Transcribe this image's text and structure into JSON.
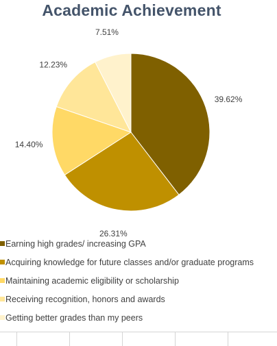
{
  "chart_data": {
    "type": "pie",
    "title": "Academic Achievement",
    "categories": [
      "Earning high grades/ increasing GPA",
      "Acquiring knowledge for future classes and/or graduate programs",
      "Maintaining academic eligibility or scholarship",
      "Receiving recognition, honors and awards",
      "Getting better grades than my peers"
    ],
    "values": [
      39.62,
      26.31,
      14.4,
      12.23,
      7.51
    ],
    "data_labels": [
      "39.62%",
      "26.31%",
      "14.40%",
      "12.23%",
      "7.51%"
    ],
    "colors": [
      "#7f6000",
      "#bf9000",
      "#ffd966",
      "#ffe699",
      "#fff2cc"
    ],
    "legend_position": "bottom",
    "start_angle_deg": 0,
    "direction": "clockwise"
  }
}
